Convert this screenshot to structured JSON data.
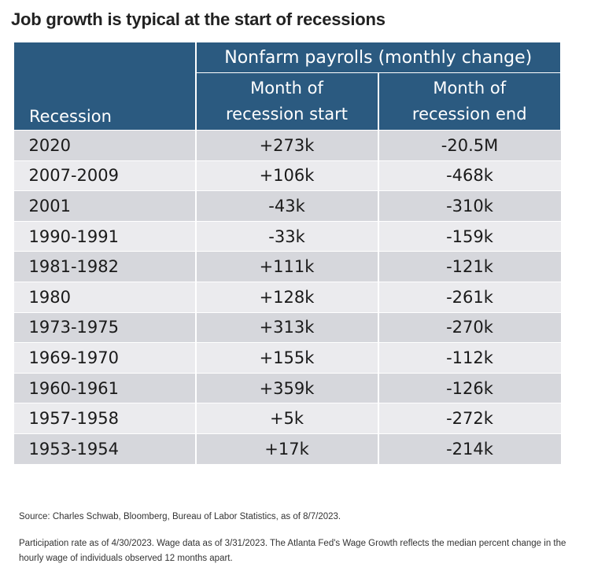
{
  "title": "Job growth is typical at the start of recessions",
  "chart_data": {
    "type": "table",
    "group_header": "Nonfarm payrolls (monthly change)",
    "columns": [
      "Recession",
      "Month of recession start",
      "Month of recession end"
    ],
    "column_labels": {
      "recession": "Recession",
      "start": [
        "Month of",
        "recession start"
      ],
      "end": [
        "Month of",
        "recession end"
      ]
    },
    "rows": [
      [
        "2020",
        "+273k",
        "-20.5M"
      ],
      [
        "2007-2009",
        "+106k",
        "-468k"
      ],
      [
        "2001",
        "-43k",
        "-310k"
      ],
      [
        "1990-1991",
        "-33k",
        "-159k"
      ],
      [
        "1981-1982",
        "+111k",
        "-121k"
      ],
      [
        "1980",
        "+128k",
        "-261k"
      ],
      [
        "1973-1975",
        "+313k",
        "-270k"
      ],
      [
        "1969-1970",
        "+155k",
        "-112k"
      ],
      [
        "1960-1961",
        "+359k",
        "-126k"
      ],
      [
        "1957-1958",
        "+5k",
        "-272k"
      ],
      [
        "1953-1954",
        "+17k",
        "-214k"
      ]
    ]
  },
  "notes": {
    "source": "Source: Charles Schwab, Bloomberg, Bureau of Labor Statistics, as of 8/7/2023.",
    "participation_line1": "Participation rate as of 4/30/2023. Wage data as of 3/31/2023. The Atlanta Fed's Wage Growth reflects the median percent change in the",
    "participation_line2": "hourly wage of individuals observed 12 months apart."
  },
  "colors": {
    "header_bg": "#2b5a80",
    "row_dark": "#d6d7dc",
    "row_light": "#ebebee"
  }
}
